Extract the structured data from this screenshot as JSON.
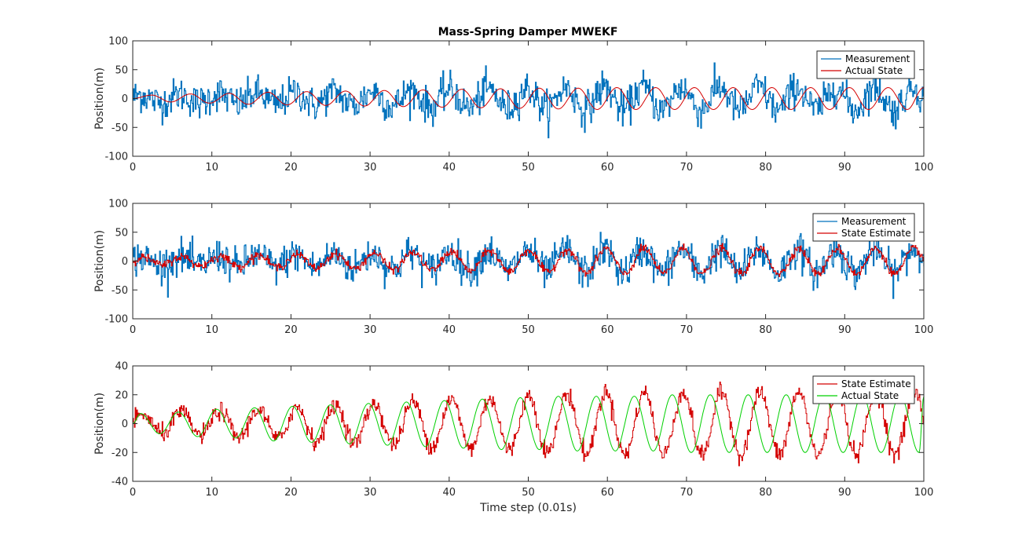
{
  "figure_title": "Mass-Spring Damper MWEKF",
  "colors": {
    "measurement": "#0072BD",
    "red": "#D40000",
    "green": "#00D000",
    "axis": "#262626"
  },
  "chart_data": [
    {
      "type": "line",
      "title": "Mass-Spring Damper MWEKF",
      "xlabel": "",
      "ylabel": "Position(m)",
      "xlim": [
        0,
        100
      ],
      "ylim": [
        -100,
        100
      ],
      "xticks": [
        0,
        10,
        20,
        30,
        40,
        50,
        60,
        70,
        80,
        90,
        100
      ],
      "yticks": [
        -100,
        -50,
        0,
        50,
        100
      ],
      "grid": false,
      "legend_position": "top-right",
      "series": [
        {
          "name": "Measurement",
          "color": "#0072BD",
          "description": "noisy measurement around actual state, std ~15",
          "x": [
            0,
            5,
            10,
            15,
            20,
            25,
            30,
            35,
            40,
            45,
            50,
            55,
            60,
            65,
            70,
            75,
            80,
            85,
            90,
            95,
            100
          ],
          "y": [
            -8,
            12,
            -20,
            15,
            -25,
            10,
            -30,
            40,
            35,
            -40,
            65,
            50,
            -45,
            40,
            45,
            -35,
            30,
            -30,
            35,
            -45,
            20
          ]
        },
        {
          "name": "Actual State",
          "color": "#D40000",
          "x": [
            0,
            2.4,
            4.8,
            7.3,
            9.7,
            12.2,
            14.6,
            17.1,
            19.5,
            22.0,
            24.4,
            26.9,
            29.3,
            31.8,
            34.2,
            36.7,
            39.1,
            41.6,
            44.0,
            46.5,
            48.9,
            51.4,
            53.8,
            56.3,
            58.7,
            61.2,
            63.6,
            66.1,
            68.5,
            71.0,
            73.4,
            75.9,
            78.3,
            80.8,
            83.2,
            85.7,
            88.1,
            90.6,
            93.0,
            95.5,
            97.9,
            100
          ],
          "y": [
            0,
            6,
            -6,
            8,
            -8,
            9,
            -10,
            11,
            -11,
            12,
            -12,
            13,
            -13,
            14,
            -14,
            15,
            -15,
            16,
            -16,
            17,
            -17,
            18,
            -18,
            18,
            -19,
            19,
            -19,
            19,
            -19,
            19,
            -19,
            19,
            -19,
            19,
            -19,
            19,
            -19,
            19,
            -19,
            19,
            -19,
            19
          ]
        }
      ]
    },
    {
      "type": "line",
      "title": "",
      "xlabel": "",
      "ylabel": "Position(m)",
      "xlim": [
        0,
        100
      ],
      "ylim": [
        -100,
        100
      ],
      "xticks": [
        0,
        10,
        20,
        30,
        40,
        50,
        60,
        70,
        80,
        90,
        100
      ],
      "yticks": [
        -100,
        -50,
        0,
        50,
        100
      ],
      "grid": false,
      "legend_position": "top-right",
      "series": [
        {
          "name": "Measurement",
          "color": "#0072BD",
          "x": [
            0,
            5,
            10,
            15,
            20,
            25,
            30,
            35,
            40,
            45,
            50,
            55,
            60,
            65,
            70,
            75,
            80,
            85,
            90,
            95,
            100
          ],
          "y": [
            -8,
            12,
            -20,
            15,
            -25,
            10,
            -30,
            40,
            35,
            -40,
            65,
            50,
            -45,
            40,
            45,
            -35,
            30,
            -30,
            35,
            -45,
            20
          ]
        },
        {
          "name": "State Estimate",
          "color": "#D40000",
          "x": [
            0,
            5,
            10,
            15,
            20,
            25,
            30,
            35,
            40,
            45,
            50,
            55,
            60,
            65,
            70,
            75,
            80,
            85,
            90,
            95,
            100
          ],
          "y": [
            -5,
            10,
            -10,
            12,
            -12,
            12,
            -12,
            22,
            -20,
            20,
            30,
            28,
            -26,
            26,
            28,
            -24,
            20,
            -22,
            22,
            -28,
            22
          ]
        }
      ]
    },
    {
      "type": "line",
      "title": "",
      "xlabel": "Time step (0.01s)",
      "ylabel": "Position(m)",
      "xlim": [
        0,
        100
      ],
      "ylim": [
        -40,
        40
      ],
      "xticks": [
        0,
        10,
        20,
        30,
        40,
        50,
        60,
        70,
        80,
        90,
        100
      ],
      "yticks": [
        -40,
        -20,
        0,
        20,
        40
      ],
      "grid": false,
      "legend_position": "top-right",
      "series": [
        {
          "name": "State Estimate",
          "color": "#D40000",
          "x": [
            0,
            1.2,
            3.4,
            5.7,
            8.0,
            10.2,
            12.5,
            14.7,
            17.0,
            19.5,
            21.8,
            24.2,
            26.6,
            29.0,
            31.4,
            34.0,
            36.4,
            38.8,
            41.2,
            43.6,
            46.0,
            48.4,
            50.5,
            53.0,
            55.3,
            57.8,
            60.2,
            62.6,
            65.0,
            67.4,
            69.9,
            72.3,
            74.8,
            77.2,
            79.6,
            82.0,
            84.5,
            86.9,
            89.4,
            91.8,
            94.2,
            96.7,
            99.2,
            100
          ],
          "y": [
            -10,
            2,
            4,
            14,
            -16,
            16,
            -11,
            10,
            -11,
            20,
            -15,
            14,
            -18,
            13,
            -12,
            18,
            -15,
            24,
            -17,
            20,
            -22,
            20,
            31,
            -25,
            28,
            -22,
            22,
            -28,
            27,
            -27,
            30,
            -24,
            22,
            -23,
            20,
            -25,
            23,
            -20,
            24,
            -22,
            21,
            -30,
            23,
            20
          ]
        },
        {
          "name": "Actual State",
          "color": "#00D000",
          "x": [
            0,
            1.0,
            3.4,
            5.8,
            8.2,
            10.6,
            13.0,
            15.4,
            17.8,
            20.2,
            22.6,
            25.0,
            27.4,
            29.8,
            32.2,
            34.6,
            37.0,
            39.4,
            41.8,
            44.2,
            46.6,
            49.0,
            51.4,
            53.8,
            56.2,
            58.6,
            61.0,
            63.4,
            65.8,
            68.2,
            70.6,
            73.0,
            75.4,
            77.8,
            80.2,
            82.6,
            85.0,
            87.4,
            89.8,
            92.2,
            94.6,
            97.0,
            99.4,
            100
          ],
          "y": [
            0,
            7,
            -7,
            8,
            -9,
            10,
            -10,
            11,
            -12,
            12,
            -13,
            13,
            -14,
            14,
            -15,
            15,
            -16,
            16,
            -17,
            17,
            -18,
            18,
            -18,
            19,
            -19,
            19,
            -19,
            19,
            -19,
            20,
            -20,
            20,
            -20,
            20,
            -20,
            20,
            -20,
            20,
            -20,
            20,
            -20,
            20,
            -20,
            19
          ]
        }
      ]
    }
  ]
}
